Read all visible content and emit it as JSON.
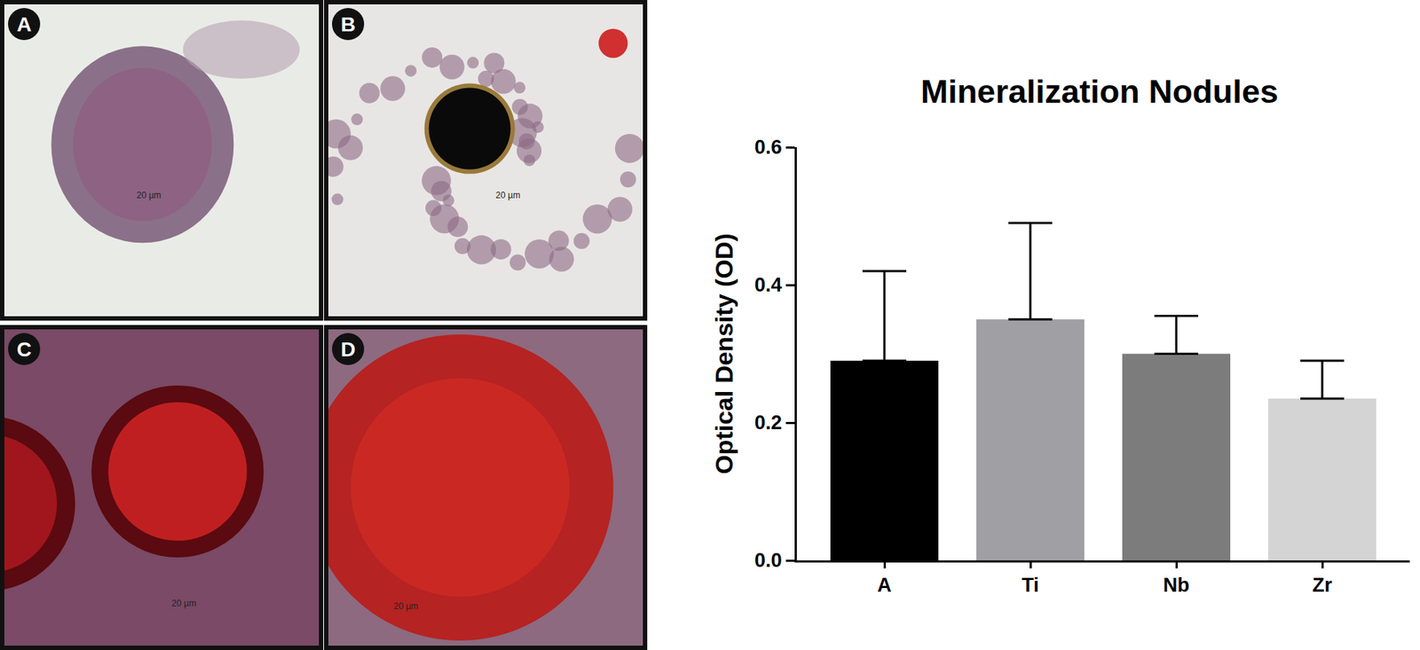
{
  "chart_data": {
    "type": "bar",
    "title": "Mineralization Nodules",
    "y_label": "Optical Density (OD)",
    "categories": [
      "A",
      "Ti",
      "Nb",
      "Zr"
    ],
    "values": [
      0.29,
      0.35,
      0.3,
      0.235
    ],
    "error": [
      0.13,
      0.14,
      0.055,
      0.055
    ],
    "colors": [
      "#000000",
      "#a0a0a4",
      "#7c7c7c",
      "#d4d4d4"
    ],
    "ylim": [
      0,
      0.6
    ],
    "yticks": [
      {
        "value": 0,
        "label": "0.0"
      },
      0.2,
      0.4,
      0.6
    ],
    "grid": false
  },
  "panels": [
    {
      "label": "A",
      "scale_bar": "20 µm"
    },
    {
      "label": "B",
      "scale_bar": "20 µm"
    },
    {
      "label": "C",
      "scale_bar": "20 µm"
    },
    {
      "label": "D",
      "scale_bar": "20 µm"
    }
  ]
}
